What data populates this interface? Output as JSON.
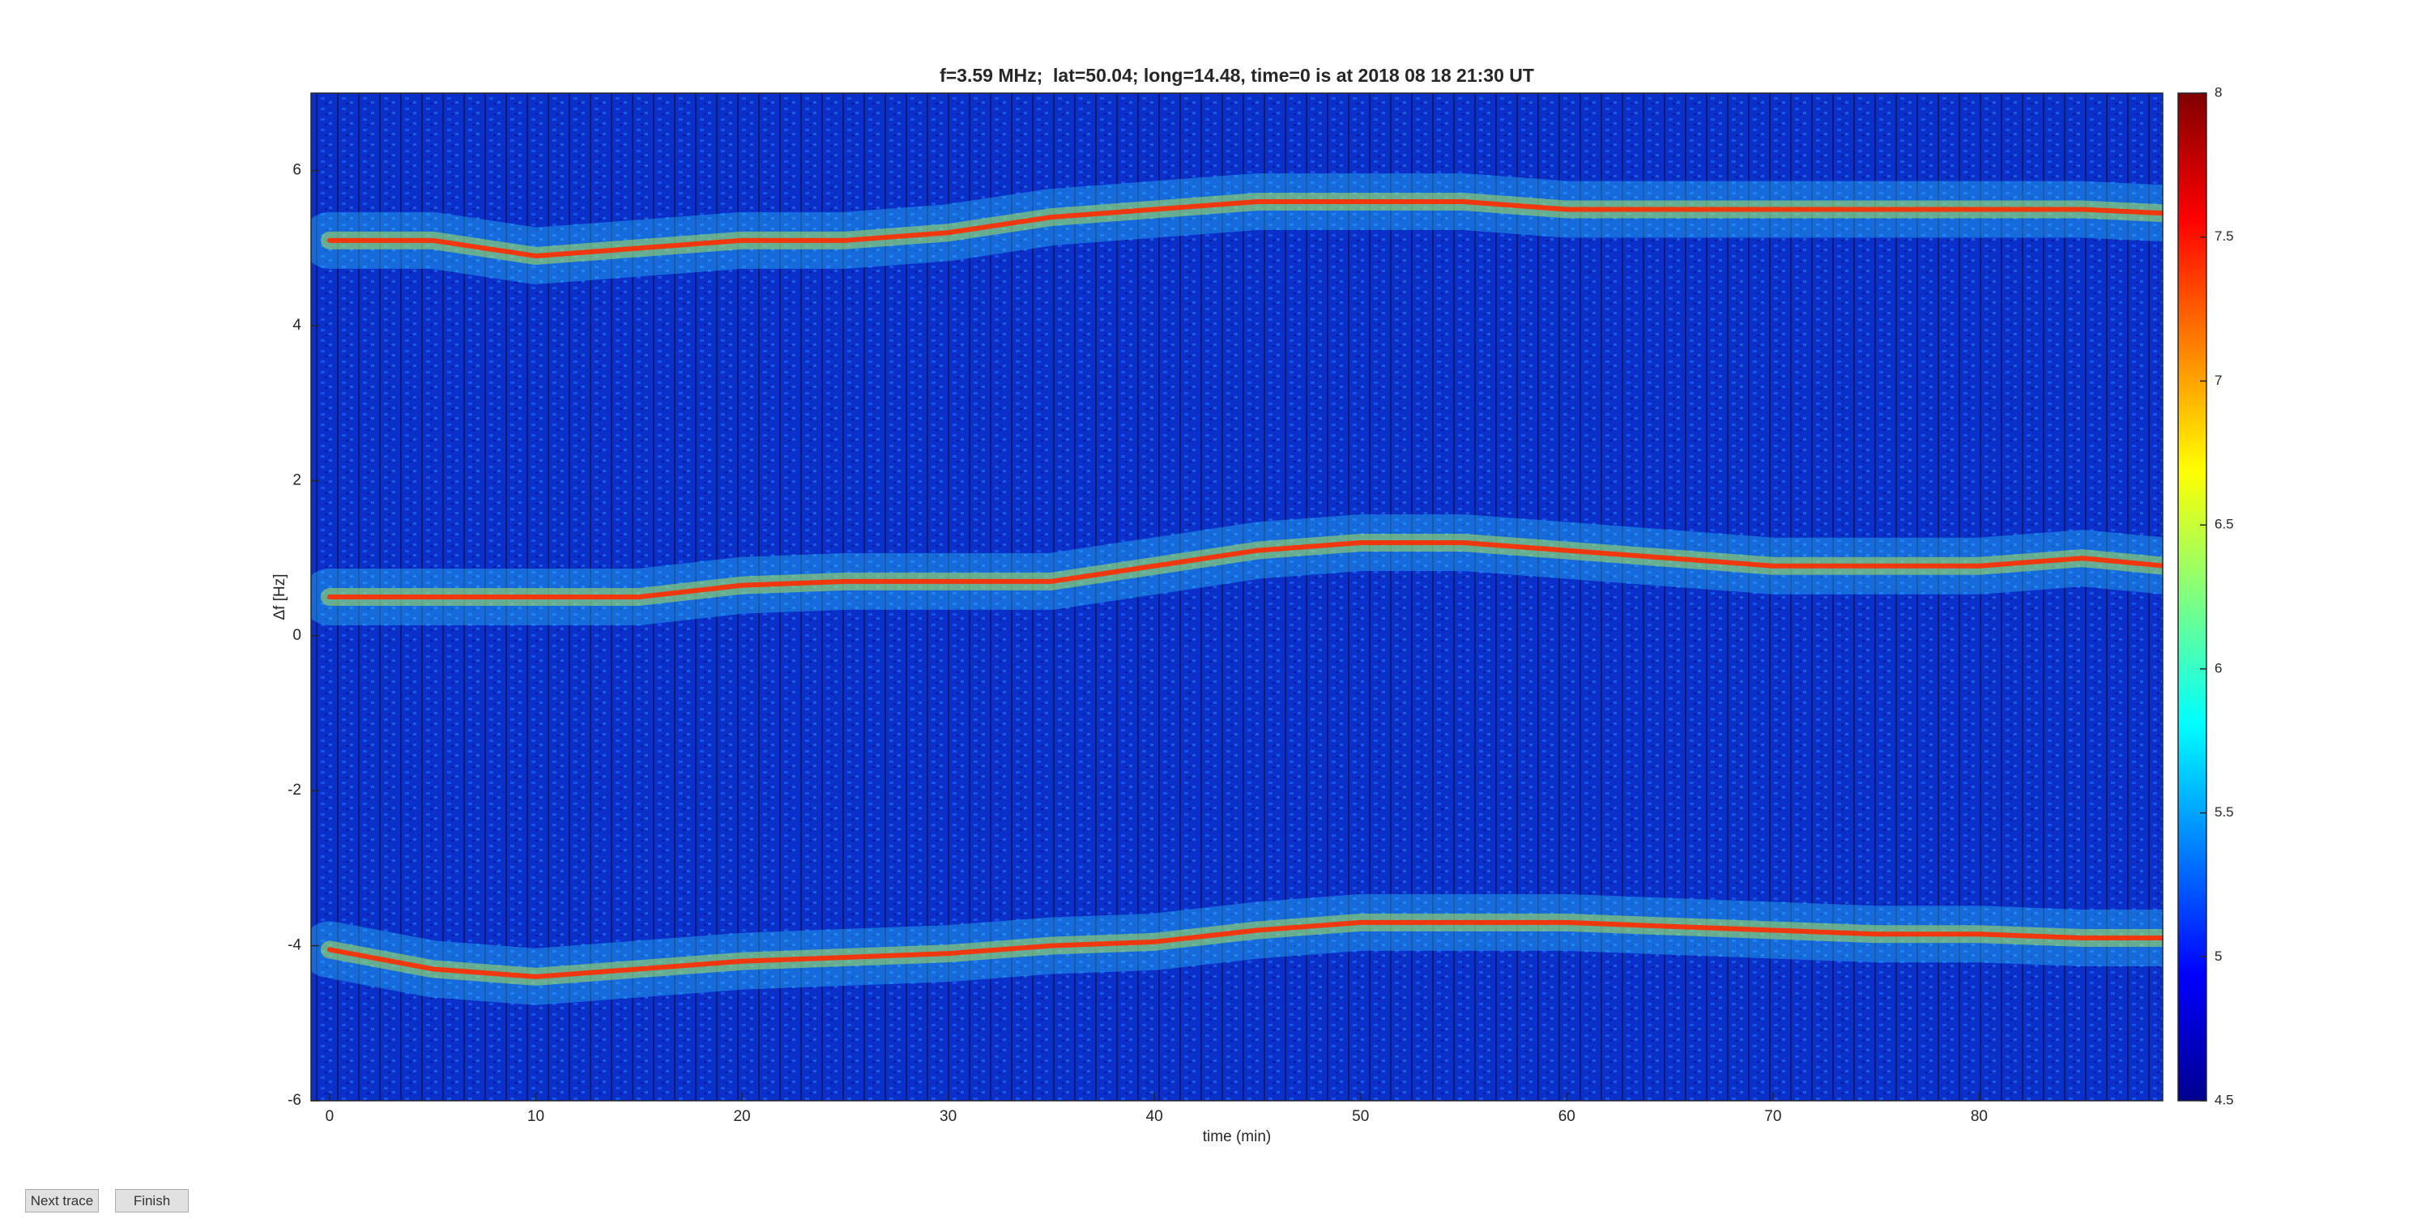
{
  "chart_data": {
    "type": "spectrogram",
    "title": "f=3.59 MHz;  lat=50.04; long=14.48, time=0 is at 2018 08 18 21:30 UT",
    "xlabel": "time (min)",
    "ylabel": "Δf [Hz]",
    "x": [
      0,
      5,
      10,
      15,
      20,
      25,
      30,
      35,
      40,
      45,
      50,
      55,
      60,
      65,
      70,
      75,
      80,
      85,
      89
    ],
    "series": [
      {
        "color": "#ff2a00",
        "values": [
          5.1,
          5.1,
          4.9,
          5.0,
          5.1,
          5.1,
          5.2,
          5.4,
          5.5,
          5.6,
          5.6,
          5.6,
          5.5,
          5.5,
          5.5,
          5.5,
          5.5,
          5.5,
          5.45
        ]
      },
      {
        "color": "#ff2a00",
        "values": [
          0.5,
          0.5,
          0.5,
          0.5,
          0.65,
          0.7,
          0.7,
          0.7,
          0.9,
          1.1,
          1.2,
          1.2,
          1.1,
          1.0,
          0.9,
          0.9,
          0.9,
          1.0,
          0.9
        ]
      },
      {
        "color": "#ff2a00",
        "values": [
          -4.05,
          -4.3,
          -4.4,
          -4.3,
          -4.2,
          -4.15,
          -4.1,
          -4.0,
          -3.95,
          -3.8,
          -3.7,
          -3.7,
          -3.7,
          -3.75,
          -3.8,
          -3.85,
          -3.85,
          -3.9,
          -3.9
        ]
      }
    ],
    "xlim": [
      -0.9,
      88.9
    ],
    "ylim": [
      -6,
      7
    ],
    "xticks": [
      0,
      10,
      20,
      30,
      40,
      50,
      60,
      70,
      80
    ],
    "yticks": [
      -6,
      -4,
      -2,
      0,
      2,
      4,
      6
    ],
    "colorbar": {
      "clim": [
        4.5,
        8
      ],
      "ticks": [
        4.5,
        5,
        5.5,
        6,
        6.5,
        7,
        7.5,
        8
      ]
    }
  },
  "ui": {
    "buttons": [
      "Next trace",
      "Finish"
    ]
  }
}
